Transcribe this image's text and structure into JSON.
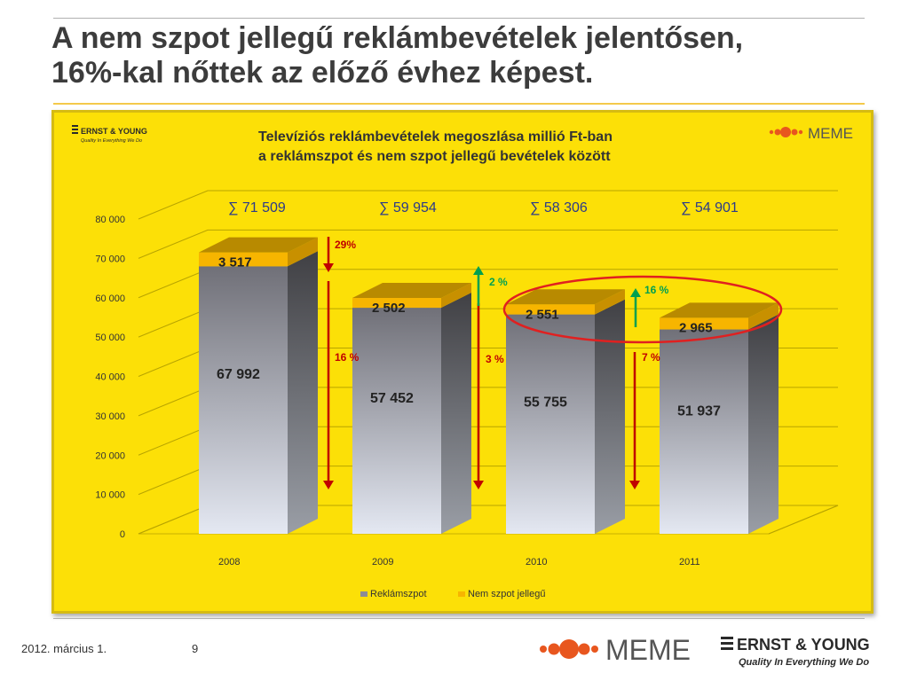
{
  "slide": {
    "title_line1": "A nem szpot jellegű reklámbevételek jelentősen,",
    "title_line2": "16%-kal nőttek az előző évhez képest.",
    "footer_date": "2012. március 1.",
    "page_number": "9"
  },
  "logos": {
    "ey_name": "ERNST & YOUNG",
    "ey_slogan": "Quality In Everything We Do",
    "meme_name": "MEME"
  },
  "colors": {
    "background": "#fce007",
    "bar_reklamszpot": "#8c8c94",
    "bar_nem_szpot": "#f7b500",
    "decrease_arrow": "#c00000",
    "increase_arrow": "#00a050",
    "highlight_ellipse": "#e02020"
  },
  "chart_data": {
    "type": "bar",
    "stacked": true,
    "three_d": true,
    "title_line1": "Televíziós reklámbevételek megoszlása millió Ft-ban",
    "title_line2": "a reklámszpot és nem szpot jellegű bevételek között",
    "categories": [
      "2008",
      "2009",
      "2010",
      "2011"
    ],
    "series": [
      {
        "name": "Reklámszpot",
        "values": [
          67992,
          57452,
          55755,
          51937
        ],
        "labels": [
          "67 992",
          "57 452",
          "55 755",
          "51 937"
        ]
      },
      {
        "name": "Nem szpot jellegű",
        "values": [
          3517,
          2502,
          2551,
          2965
        ],
        "labels": [
          "3 517",
          "2 502",
          "2 551",
          "2 965"
        ]
      }
    ],
    "totals": [
      "∑  71 509",
      "∑  59 954",
      "∑  58 306",
      "∑  54 901"
    ],
    "ylim": [
      0,
      80000
    ],
    "yticks": [
      0,
      10000,
      20000,
      30000,
      40000,
      50000,
      60000,
      70000,
      80000
    ],
    "ytick_labels": [
      "0",
      "10 000",
      "20 000",
      "30 000",
      "40 000",
      "50 000",
      "60 000",
      "70 000",
      "80 000"
    ],
    "grid": true,
    "legend_position": "bottom",
    "annotations": {
      "total_change": [
        "29%"
      ],
      "spot_change": [
        "16 %",
        "3 %",
        "7 %"
      ],
      "non_spot_change": [
        "2 %",
        "16 %"
      ]
    }
  }
}
